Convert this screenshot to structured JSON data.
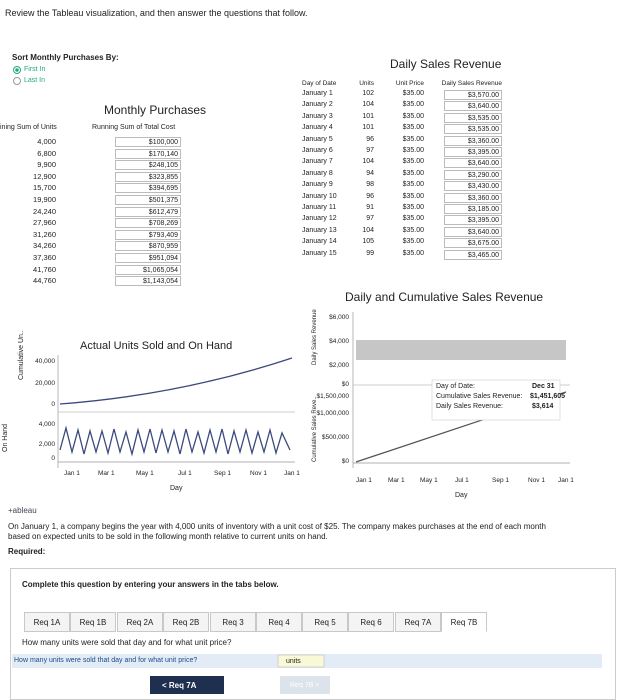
{
  "header": {
    "instruction": "Review the Tableau visualization, and then answer the questions that follow."
  },
  "sort": {
    "title": "Sort Monthly Purchases By:",
    "options": [
      "First In",
      "Last In"
    ]
  },
  "monthly_purchases": {
    "title": "Monthly Purchases",
    "columns": [
      "ining Sum of Units",
      "Running Sum of Total Cost"
    ],
    "units": [
      "4,000",
      "6,800",
      "9,900",
      "12,900",
      "15,700",
      "19,900",
      "24,240",
      "27,960",
      "31,260",
      "34,260",
      "37,360",
      "41,760",
      "44,760"
    ],
    "costs": [
      "$100,000",
      "$170,140",
      "$248,105",
      "$323,855",
      "$394,695",
      "$501,375",
      "$612,479",
      "$708,269",
      "$793,409",
      "$870,959",
      "$951,094",
      "$1,065,054",
      "$1,143,054"
    ]
  },
  "daily_sales": {
    "title": "Daily Sales Revenue",
    "columns": [
      "Day of Date",
      "Units",
      "Unit Price",
      "Daily Sales Revenue"
    ],
    "rows": [
      [
        "January 1",
        "102",
        "$35.00",
        "$3,570.00"
      ],
      [
        "January 2",
        "104",
        "$35.00",
        "$3,640.00"
      ],
      [
        "January 3",
        "101",
        "$35.00",
        "$3,535.00"
      ],
      [
        "January 4",
        "101",
        "$35.00",
        "$3,535.00"
      ],
      [
        "January 5",
        "96",
        "$35.00",
        "$3,360.00"
      ],
      [
        "January 6",
        "97",
        "$35.00",
        "$3,395.00"
      ],
      [
        "January 7",
        "104",
        "$35.00",
        "$3,640.00"
      ],
      [
        "January 8",
        "94",
        "$35.00",
        "$3,290.00"
      ],
      [
        "January 9",
        "98",
        "$35.00",
        "$3,430.00"
      ],
      [
        "January 10",
        "96",
        "$35.00",
        "$3,360.00"
      ],
      [
        "January 11",
        "91",
        "$35.00",
        "$3,185.00"
      ],
      [
        "January 12",
        "97",
        "$35.00",
        "$3,395.00"
      ],
      [
        "January 13",
        "104",
        "$35.00",
        "$3,640.00"
      ],
      [
        "January 14",
        "105",
        "$35.00",
        "$3,675.00"
      ],
      [
        "January 15",
        "99",
        "$35.00",
        "$3,465.00"
      ]
    ]
  },
  "units_chart": {
    "title": "Actual Units Sold and On Hand",
    "cumulative_label": "Cumulative Un..",
    "cumulative_ticks": [
      "40,000",
      "20,000",
      "0"
    ],
    "onhand_label": "On Hand",
    "onhand_ticks": [
      "4,000",
      "2,000",
      "0"
    ],
    "x_ticks": [
      "Jan 1",
      "Mar 1",
      "May 1",
      "Jul 1",
      "Sep 1",
      "Nov 1",
      "Jan 1"
    ],
    "x_label": "Day"
  },
  "revenue_chart": {
    "title": "Daily and Cumulative Sales Revenue",
    "daily_label": "Daily Sales Revenue",
    "daily_ticks": [
      "$6,000",
      "$4,000",
      "$2,000",
      "$0"
    ],
    "cumulative_label": "Cumulative Sales Reve..",
    "cumulative_ticks": [
      "$1,500,000",
      "$1,000,000",
      "$500,000",
      "$0"
    ],
    "x_ticks": [
      "Jan 1",
      "Mar 1",
      "May 1",
      "Jul 1",
      "Sep 1",
      "Nov 1",
      "Jan 1"
    ],
    "x_label": "Day",
    "tooltip": {
      "date_label": "Day of Date:",
      "date": "Dec 31",
      "cum_label": "Cumulative Sales Revenue:",
      "cum": "$1,451,605",
      "daily_label": "Daily Sales Revenue:",
      "daily": "$3,614"
    }
  },
  "brand": "+ableau",
  "problem": {
    "text": "On January 1, a company begins the year with 4,000 units of inventory with a unit cost of $25. The company makes purchases at the end of each month based on expected units to be sold in the following month relative to current units on hand.",
    "required": "Required:"
  },
  "panel": {
    "instruction": "Complete this question by entering your answers in the tabs below.",
    "tabs": [
      "Req 1A",
      "Req 1B",
      "Req 2A",
      "Req 2B",
      "Req 3",
      "Req 4",
      "Req 5",
      "Req 6",
      "Req 7A",
      "Req 7B"
    ],
    "question": "How many units were sold that day and for what unit price?",
    "row_label": "How many units were sold that day and for what unit price?",
    "input_unit": "units",
    "prev": "< Req 7A",
    "next": "Req 7B >"
  }
}
